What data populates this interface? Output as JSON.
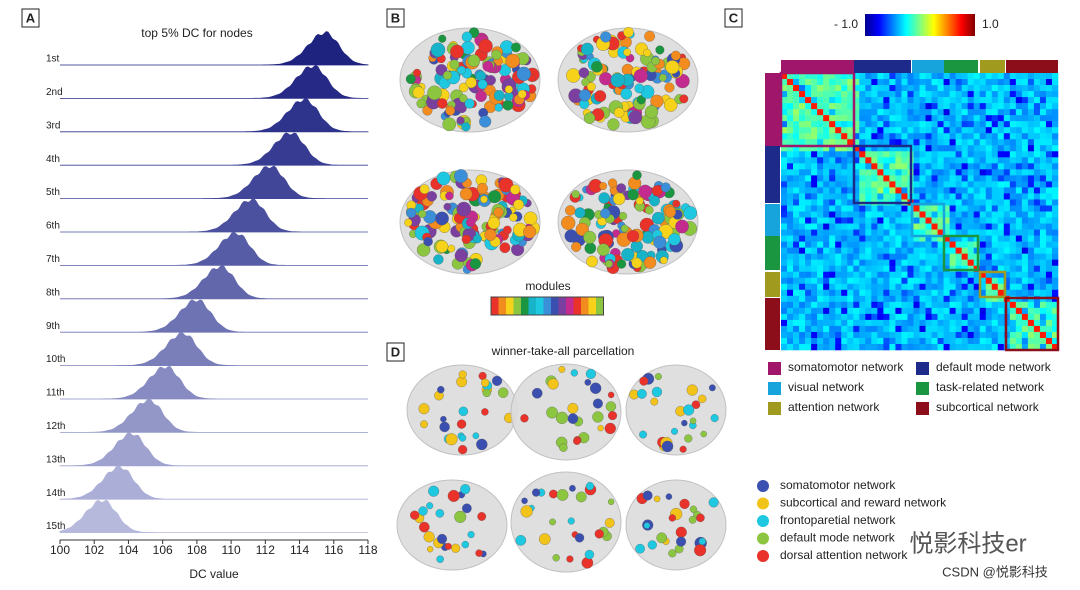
{
  "chart_data": {
    "type": "ridgeline",
    "title": "top 5% DC for nodes",
    "x_label": "DC value",
    "categories": [
      "1st",
      "2nd",
      "3rd",
      "4th",
      "5th",
      "6th",
      "7th",
      "8th",
      "9th",
      "10th",
      "11th",
      "12th",
      "13th",
      "14th",
      "15th"
    ],
    "values": [
      115.5,
      114.8,
      114.3,
      113.5,
      112.3,
      111.2,
      110.3,
      109.4,
      108,
      107.2,
      106.2,
      105.2,
      104.2,
      103.5,
      102.5
    ],
    "colors": [
      "#1f2380",
      "#262a86",
      "#2e338c",
      "#373c92",
      "#414698",
      "#4b519e",
      "#565ca5",
      "#6267ac",
      "#6e73b3",
      "#7a7fba",
      "#878bc1",
      "#9397c8",
      "#9fa2cf",
      "#abaed6",
      "#b6b9dc"
    ],
    "xlim": [
      100,
      118
    ],
    "xticks": [
      100,
      102,
      104,
      106,
      108,
      110,
      112,
      114,
      116,
      118
    ]
  },
  "panel_labels": [
    "A",
    "B",
    "C",
    "D"
  ],
  "panel_b": {
    "colorbar_label": "modules",
    "module_colors": [
      "#e8322a",
      "#f28c1e",
      "#f6d21a",
      "#8cc640",
      "#1a9640",
      "#17b3c9",
      "#1ec8e0",
      "#3b8fd8",
      "#3b4fb0",
      "#7b3fa0",
      "#c42b8e",
      "#e8322a",
      "#f28c1e",
      "#f6d21a",
      "#8cc640"
    ]
  },
  "panel_c": {
    "colorbar_min": "- 1.0",
    "colorbar_max": "1.0",
    "legend": [
      {
        "name": "somatomotor network",
        "color": "#a0166a"
      },
      {
        "name": "default mode network",
        "color": "#1e2a8a"
      },
      {
        "name": "visual network",
        "color": "#17a3dc"
      },
      {
        "name": "task-related network",
        "color": "#1a9640"
      },
      {
        "name": "attention network",
        "color": "#a09a1e"
      },
      {
        "name": "subcortical network",
        "color": "#8b0e1a"
      }
    ]
  },
  "panel_d": {
    "title": "winner-take-all parcellation",
    "legend": [
      {
        "name": "somatomotor network",
        "color": "#3b4fb0"
      },
      {
        "name": "subcortical and reward network",
        "color": "#f2c318"
      },
      {
        "name": "frontoparetial network",
        "color": "#1ec8e0"
      },
      {
        "name": "default mode network",
        "color": "#8cc640"
      },
      {
        "name": "dorsal attention network",
        "color": "#e8322a"
      }
    ]
  },
  "watermark": "悦影科技er",
  "credit": "CSDN @悦影科技"
}
